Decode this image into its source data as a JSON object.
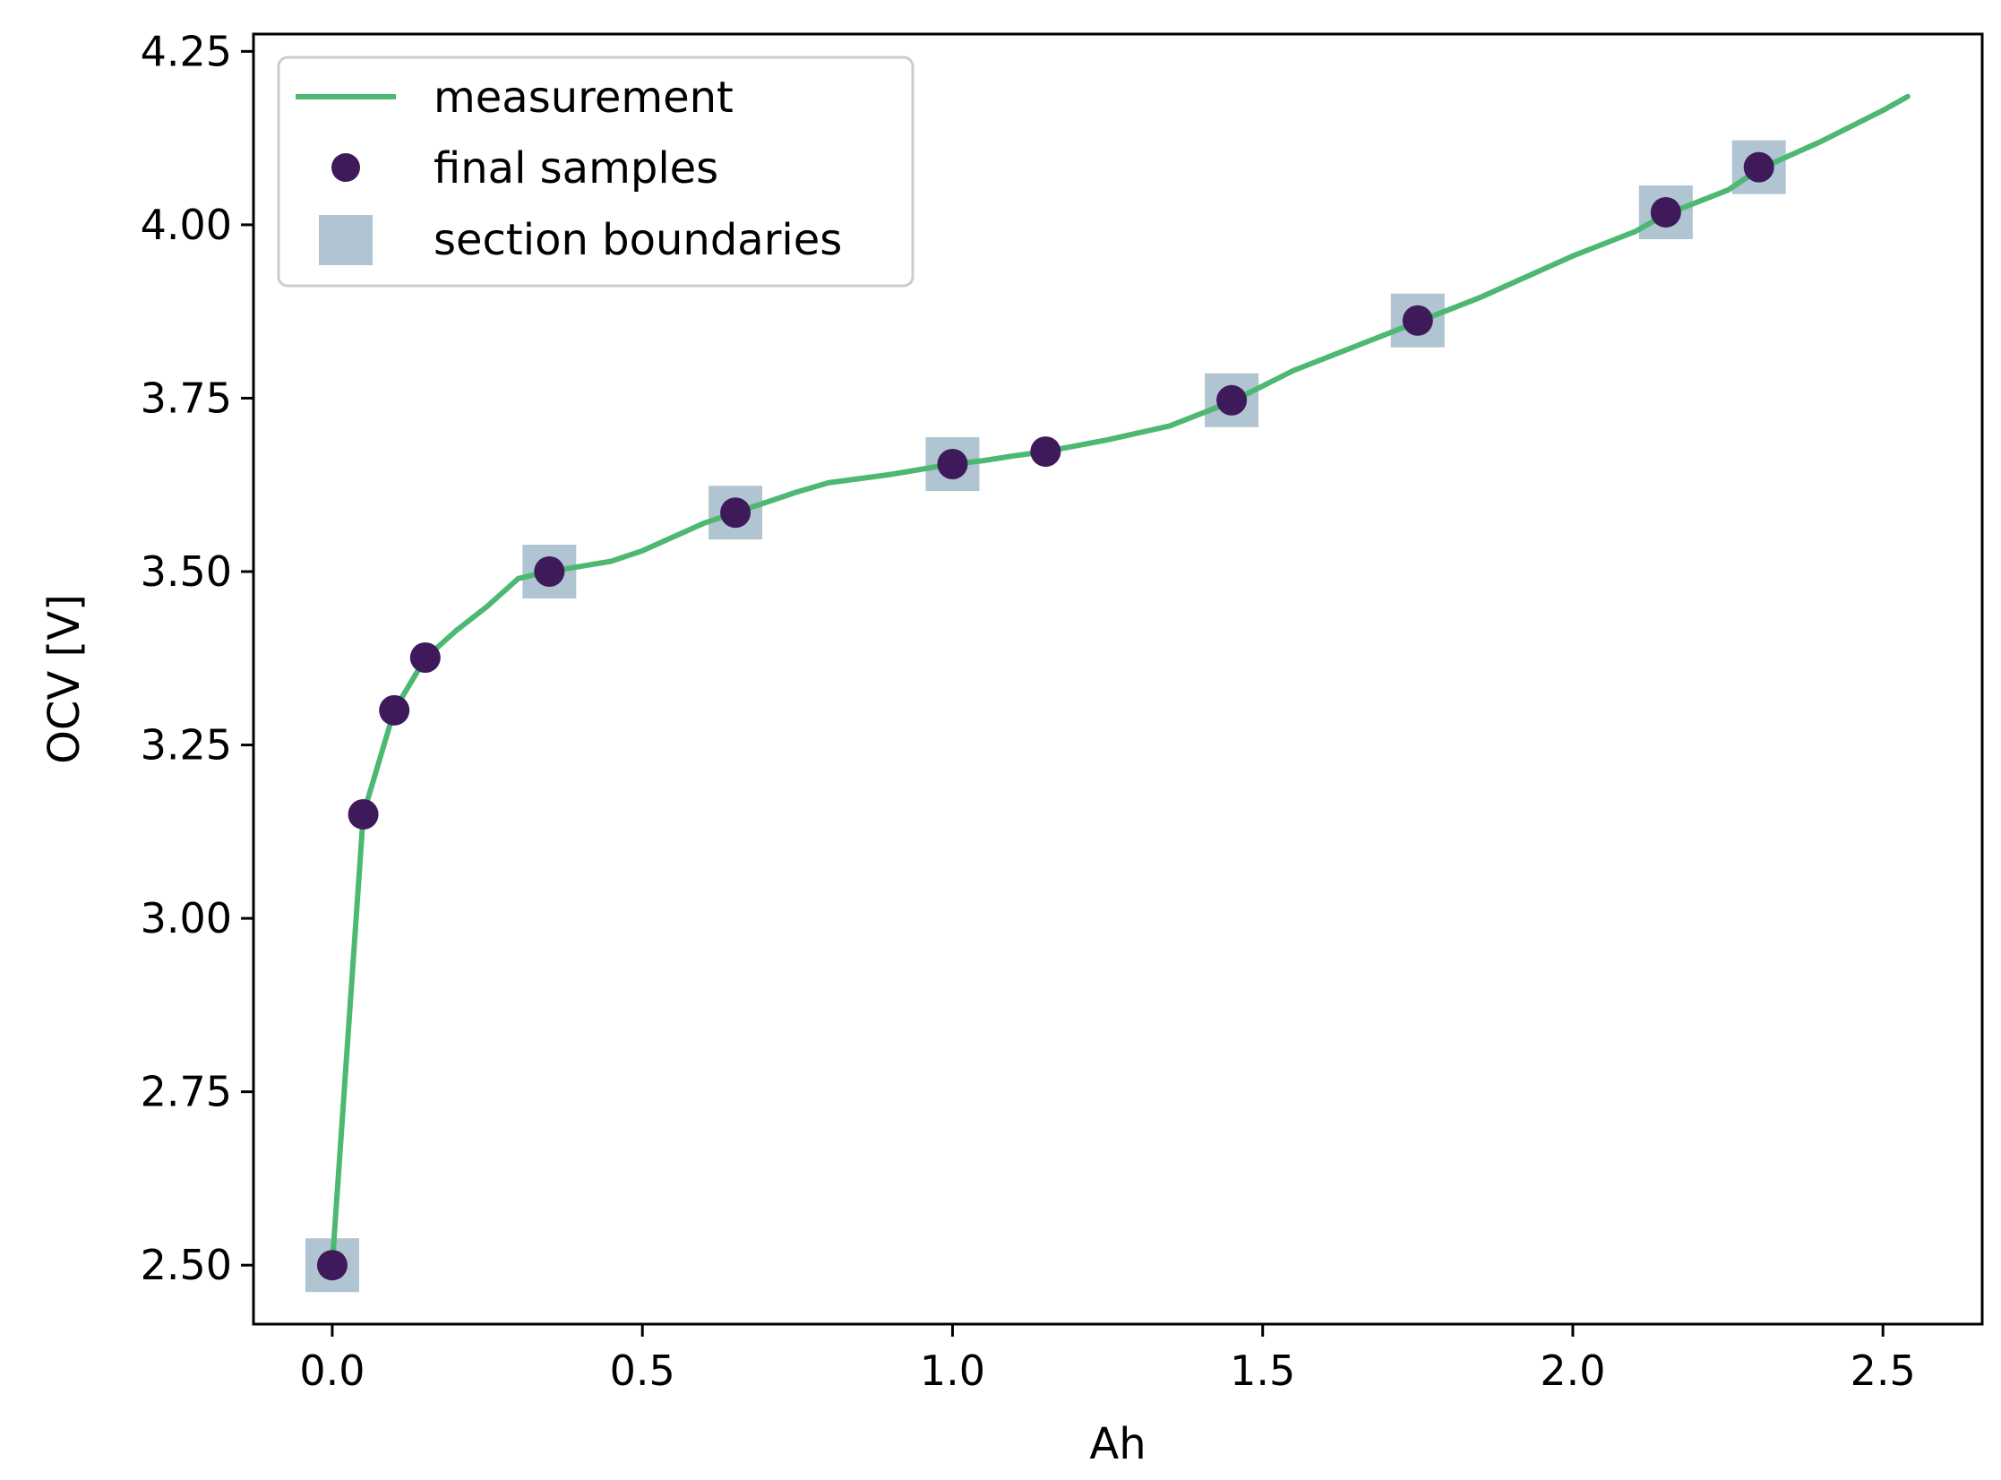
{
  "chart_data": {
    "type": "line",
    "title": "",
    "xlabel": "Ah",
    "ylabel": "OCV [V]",
    "xlim": [
      -0.127,
      2.66
    ],
    "ylim": [
      2.415,
      4.275
    ],
    "xticks": [
      0.0,
      0.5,
      1.0,
      1.5,
      2.0,
      2.5
    ],
    "xtick_labels": [
      "0.0",
      "0.5",
      "1.0",
      "1.5",
      "2.0",
      "2.5"
    ],
    "yticks": [
      2.5,
      2.75,
      3.0,
      3.25,
      3.5,
      3.75,
      4.0,
      4.25
    ],
    "ytick_labels": [
      "2.50",
      "2.75",
      "3.00",
      "3.25",
      "3.50",
      "3.75",
      "4.00",
      "4.25"
    ],
    "grid": false,
    "legend_position": "upper-left",
    "series": [
      {
        "name": "measurement",
        "kind": "line",
        "color": "#4cb871",
        "x": [
          0.0,
          0.05,
          0.1,
          0.15,
          0.2,
          0.25,
          0.3,
          0.35,
          0.45,
          0.5,
          0.55,
          0.6,
          0.65,
          0.7,
          0.75,
          0.8,
          0.9,
          1.0,
          1.05,
          1.1,
          1.15,
          1.25,
          1.35,
          1.45,
          1.55,
          1.65,
          1.75,
          1.85,
          1.95,
          2.0,
          2.1,
          2.15,
          2.25,
          2.3,
          2.4,
          2.5,
          2.54
        ],
        "y": [
          2.5,
          3.15,
          3.3,
          3.375,
          3.415,
          3.45,
          3.49,
          3.5,
          3.515,
          3.53,
          3.55,
          3.57,
          3.585,
          3.6,
          3.615,
          3.628,
          3.64,
          3.655,
          3.66,
          3.667,
          3.673,
          3.69,
          3.71,
          3.745,
          3.79,
          3.825,
          3.86,
          3.895,
          3.935,
          3.955,
          3.99,
          4.015,
          4.05,
          4.08,
          4.12,
          4.165,
          4.185
        ]
      },
      {
        "name": "final samples",
        "kind": "scatter",
        "color": "#3e1a5a",
        "x": [
          0.0,
          0.05,
          0.1,
          0.15,
          0.35,
          0.65,
          1.0,
          1.15,
          1.45,
          1.75,
          2.15,
          2.3
        ],
        "y": [
          2.5,
          3.15,
          3.3,
          3.376,
          3.5,
          3.585,
          3.655,
          3.673,
          3.747,
          3.862,
          4.018,
          4.083
        ]
      },
      {
        "name": "section boundaries",
        "kind": "scatter",
        "marker": "square",
        "color": "#b0c4d2",
        "x": [
          0.0,
          0.35,
          0.65,
          1.0,
          1.45,
          1.75,
          2.15,
          2.3
        ],
        "y": [
          2.5,
          3.5,
          3.585,
          3.655,
          3.747,
          3.862,
          4.018,
          4.083
        ]
      }
    ]
  }
}
